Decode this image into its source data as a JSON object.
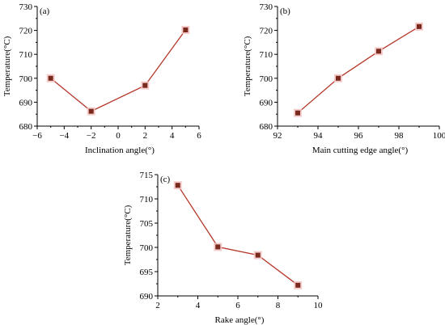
{
  "chart_data": [
    {
      "type": "line",
      "panel": "(a)",
      "title": "",
      "xlabel": "Inclination angle(°)",
      "ylabel": "Temperature(°C)",
      "x": [
        -5,
        -2,
        2,
        5
      ],
      "series": [
        {
          "values": [
            700,
            686.2,
            697,
            720.2
          ]
        }
      ],
      "xlim": [
        -6,
        6
      ],
      "ylim": [
        680,
        730
      ],
      "xticks": [
        -6,
        -4,
        -2,
        0,
        2,
        4,
        6
      ],
      "yticks": [
        680,
        690,
        700,
        710,
        720,
        730
      ],
      "grid": false,
      "legend": "none"
    },
    {
      "type": "line",
      "panel": "(b)",
      "title": "",
      "xlabel": "Main cutting edge angle(°)",
      "ylabel": "Temperature(°C)",
      "x": [
        93,
        95,
        97,
        99
      ],
      "series": [
        {
          "values": [
            685.5,
            700,
            711.3,
            721.6
          ]
        }
      ],
      "xlim": [
        92,
        100
      ],
      "ylim": [
        680,
        730
      ],
      "xticks": [
        92,
        94,
        96,
        98,
        100
      ],
      "yticks": [
        680,
        690,
        700,
        710,
        720,
        730
      ],
      "grid": false,
      "legend": "none"
    },
    {
      "type": "line",
      "panel": "(c)",
      "title": "",
      "xlabel": "Rake angle(°)",
      "ylabel": "Temperature(°C)",
      "x": [
        3,
        5,
        7,
        9
      ],
      "series": [
        {
          "values": [
            712.8,
            700.1,
            698.4,
            692.2
          ]
        }
      ],
      "xlim": [
        2,
        10
      ],
      "ylim": [
        690,
        715
      ],
      "xticks": [
        2,
        4,
        6,
        8,
        10
      ],
      "yticks": [
        690,
        695,
        700,
        705,
        710,
        715
      ],
      "grid": false,
      "legend": "none"
    }
  ],
  "style": {
    "line_color": "#b5372a",
    "marker_color": "#7a2a1c",
    "marker_halo_color": "#f3c3c3",
    "axis_color": "#000000"
  }
}
